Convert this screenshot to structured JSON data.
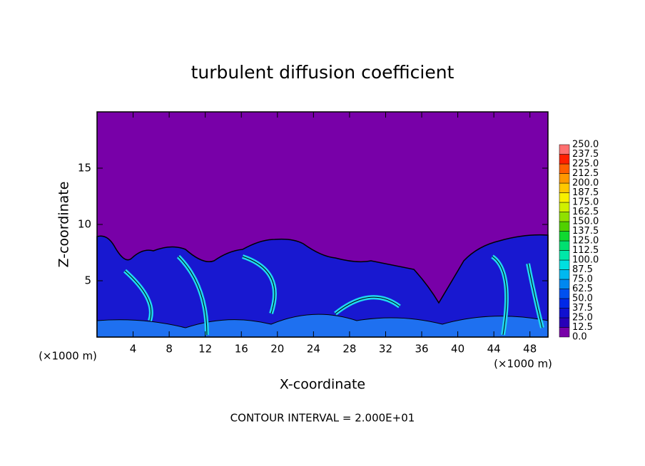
{
  "chart_data": {
    "type": "contour",
    "title": "turbulent diffusion coefficient",
    "x_label": "X-coordinate",
    "y_label": "Z-coordinate",
    "x_unit": "(×1000 m)",
    "y_unit": "(×1000 m)",
    "footer": "CONTOUR INTERVAL = 2.000E+01",
    "xlim": [
      0,
      50
    ],
    "ylim": [
      0,
      20
    ],
    "xticks": [
      4,
      8,
      12,
      16,
      20,
      24,
      28,
      32,
      36,
      40,
      44,
      48
    ],
    "yticks": [
      5,
      10,
      15
    ],
    "colorbar": {
      "levels": [
        {
          "value": 0,
          "label": "0.0"
        },
        12.5,
        {
          "value": 25,
          "label": "25.0"
        },
        37.5,
        {
          "value": 50,
          "label": "50.0"
        },
        62.5,
        {
          "value": 75,
          "label": "75.0"
        },
        87.5,
        {
          "value": 100,
          "label": "100.0"
        },
        112.5,
        {
          "value": 125,
          "label": "125.0"
        },
        137.5,
        {
          "value": 150,
          "label": "150.0"
        },
        162.5,
        {
          "value": 175,
          "label": "175.0"
        },
        187.5,
        {
          "value": 200,
          "label": "200.0"
        },
        212.5,
        {
          "value": 225,
          "label": "225.0"
        },
        237.5,
        {
          "value": 250,
          "label": "250.0"
        }
      ],
      "colors": [
        "#7800a8",
        "#2800b8",
        "#1010d0",
        "#0028e8",
        "#0050f0",
        "#0088f0",
        "#00b8f0",
        "#00e0e0",
        "#00e8a8",
        "#00e070",
        "#10d830",
        "#50d000",
        "#90e000",
        "#d0f000",
        "#f8f000",
        "#ffc800",
        "#ff9800",
        "#ff6000",
        "#ff2000",
        "#ff7070"
      ]
    }
  }
}
